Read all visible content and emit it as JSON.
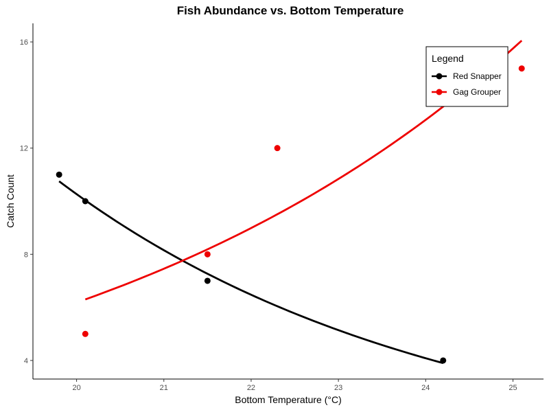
{
  "chart_data": {
    "type": "scatter",
    "title": "Fish Abundance vs. Bottom Temperature",
    "xlabel": "Bottom Temperature (°C)",
    "ylabel": "Catch Count",
    "xlim": [
      19.5,
      25.35
    ],
    "ylim": [
      3.3,
      16.7
    ],
    "x_ticks": [
      20,
      21,
      22,
      23,
      24,
      25
    ],
    "y_ticks": [
      4,
      8,
      12,
      16
    ],
    "grid": false,
    "legend": {
      "title": "Legend",
      "placement": "top-right"
    },
    "series": [
      {
        "name": "Red Snapper",
        "color": "#000000",
        "points": [
          {
            "x": 19.8,
            "y": 11
          },
          {
            "x": 20.1,
            "y": 10
          },
          {
            "x": 21.5,
            "y": 7
          },
          {
            "x": 24.2,
            "y": 4
          }
        ],
        "trend": {
          "type": "exponential",
          "x_start": 19.8,
          "x_end": 24.2,
          "y_start": 10.75,
          "y_end": 3.9
        }
      },
      {
        "name": "Gag Grouper",
        "color": "#ee0000",
        "points": [
          {
            "x": 20.1,
            "y": 5
          },
          {
            "x": 21.5,
            "y": 8
          },
          {
            "x": 22.3,
            "y": 12
          },
          {
            "x": 25.1,
            "y": 15
          }
        ],
        "trend": {
          "type": "exponential",
          "x_start": 20.1,
          "x_end": 25.1,
          "y_start": 6.3,
          "y_end": 16.05
        }
      }
    ]
  }
}
